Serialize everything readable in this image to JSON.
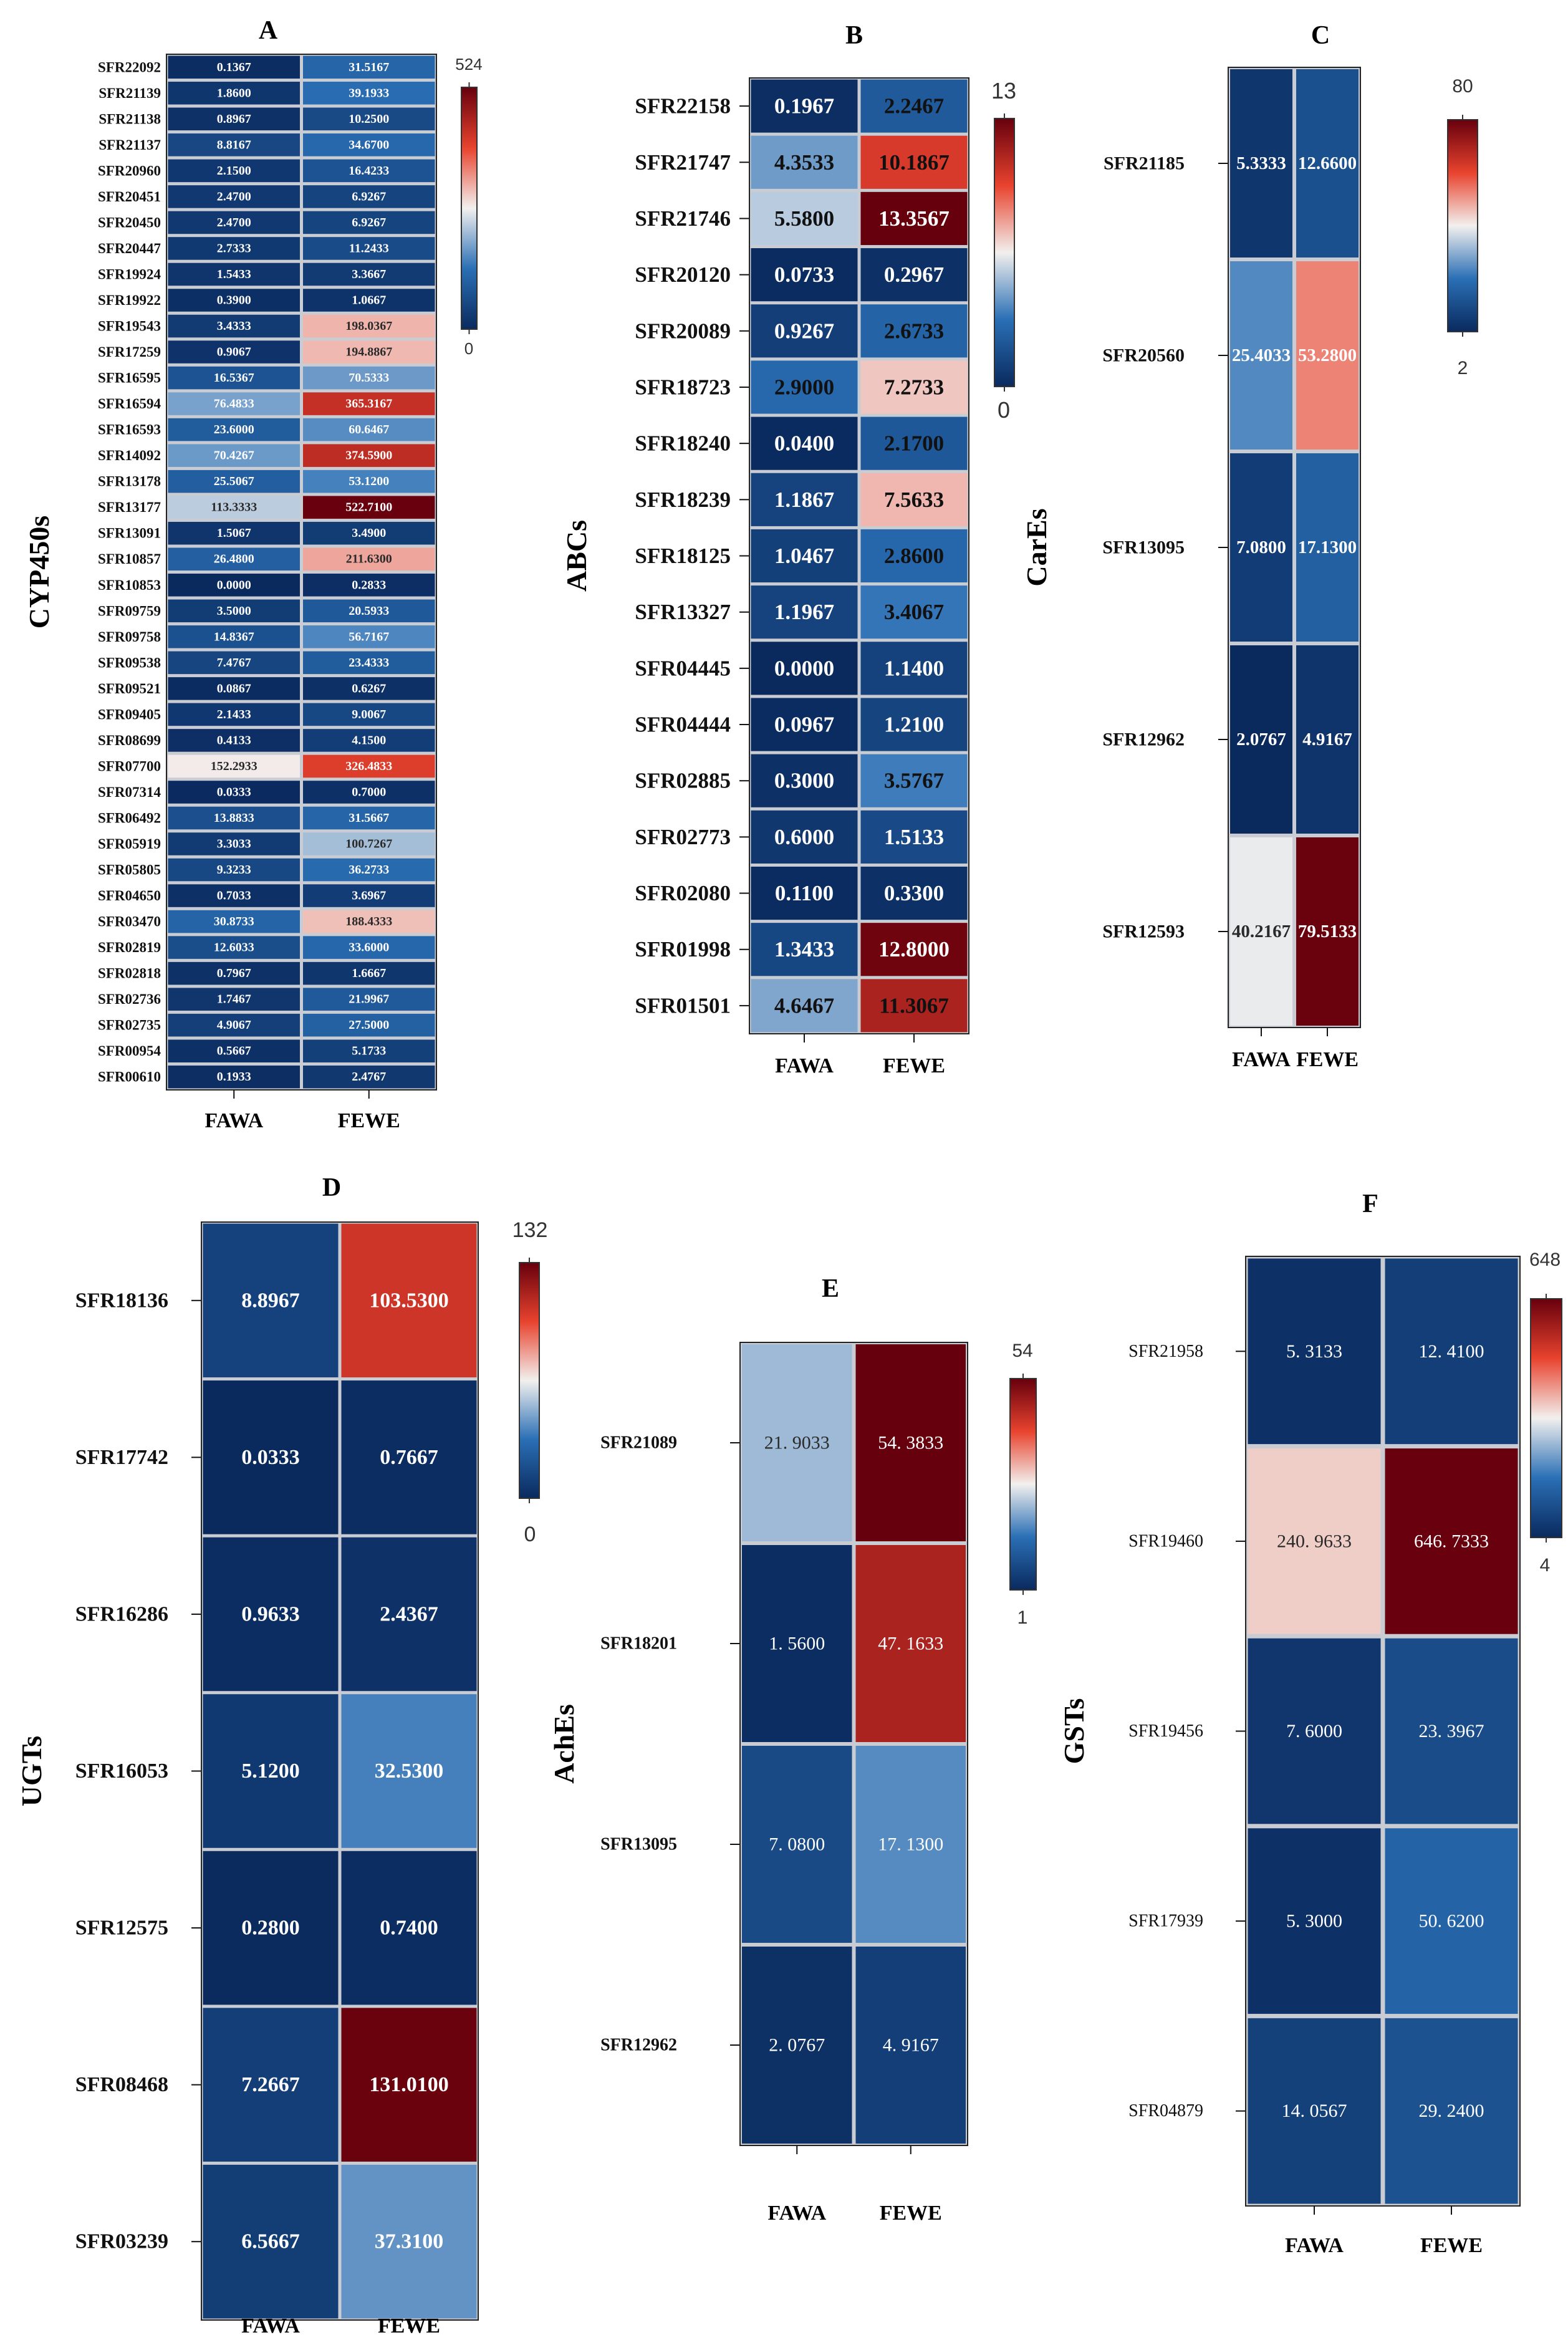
{
  "figure": {
    "chart_data": [
      {
        "type": "heatmap",
        "panel": "A",
        "ylabel": "CYP450s",
        "columns": [
          "FAWA",
          "FEWE"
        ],
        "rows": [
          "SFR22092",
          "SFR21139",
          "SFR21138",
          "SFR21137",
          "SFR20960",
          "SFR20451",
          "SFR20450",
          "SFR20447",
          "SFR19924",
          "SFR19922",
          "SFR19543",
          "SFR17259",
          "SFR16595",
          "SFR16594",
          "SFR16593",
          "SFR14092",
          "SFR13178",
          "SFR13177",
          "SFR13091",
          "SFR10857",
          "SFR10853",
          "SFR09759",
          "SFR09758",
          "SFR09538",
          "SFR09521",
          "SFR09405",
          "SFR08699",
          "SFR07700",
          "SFR07314",
          "SFR06492",
          "SFR05919",
          "SFR05805",
          "SFR04650",
          "SFR03470",
          "SFR02819",
          "SFR02818",
          "SFR02736",
          "SFR02735",
          "SFR00954",
          "SFR00610"
        ],
        "values": [
          [
            "0.1367",
            "31.5167"
          ],
          [
            "1.8600",
            "39.1933"
          ],
          [
            "0.8967",
            "10.2500"
          ],
          [
            "8.8167",
            "34.6700"
          ],
          [
            "2.1500",
            "16.4233"
          ],
          [
            "2.4700",
            "6.9267"
          ],
          [
            "2.4700",
            "6.9267"
          ],
          [
            "2.7333",
            "11.2433"
          ],
          [
            "1.5433",
            "3.3667"
          ],
          [
            "0.3900",
            "1.0667"
          ],
          [
            "3.4333",
            "198.0367"
          ],
          [
            "0.9067",
            "194.8867"
          ],
          [
            "16.5367",
            "70.5333"
          ],
          [
            "76.4833",
            "365.3167"
          ],
          [
            "23.6000",
            "60.6467"
          ],
          [
            "70.4267",
            "374.5900"
          ],
          [
            "25.5067",
            "53.1200"
          ],
          [
            "113.3333",
            "522.7100"
          ],
          [
            "1.5067",
            "3.4900"
          ],
          [
            "26.4800",
            "211.6300"
          ],
          [
            "0.0000",
            "0.2833"
          ],
          [
            "3.5000",
            "20.5933"
          ],
          [
            "14.8367",
            "56.7167"
          ],
          [
            "7.4767",
            "23.4333"
          ],
          [
            "0.0867",
            "0.6267"
          ],
          [
            "2.1433",
            "9.0067"
          ],
          [
            "0.4133",
            "4.1500"
          ],
          [
            "152.2933",
            "326.4833"
          ],
          [
            "0.0333",
            "0.7000"
          ],
          [
            "13.8833",
            "31.5667"
          ],
          [
            "3.3033",
            "100.7267"
          ],
          [
            "9.3233",
            "36.2733"
          ],
          [
            "0.7033",
            "3.6967"
          ],
          [
            "30.8733",
            "188.4333"
          ],
          [
            "12.6033",
            "33.6000"
          ],
          [
            "0.7967",
            "1.6667"
          ],
          [
            "1.7467",
            "21.9967"
          ],
          [
            "4.9067",
            "27.5000"
          ],
          [
            "0.5667",
            "5.1733"
          ],
          [
            "0.1933",
            "2.4767"
          ]
        ],
        "colorbar": {
          "min": 0,
          "max": 524,
          "min_label": "0",
          "max_label": "524"
        }
      },
      {
        "type": "heatmap",
        "panel": "B",
        "ylabel": "ABCs",
        "columns": [
          "FAWA",
          "FEWE"
        ],
        "rows": [
          "SFR22158",
          "SFR21747",
          "SFR21746",
          "SFR20120",
          "SFR20089",
          "SFR18723",
          "SFR18240",
          "SFR18239",
          "SFR18125",
          "SFR13327",
          "SFR04445",
          "SFR04444",
          "SFR02885",
          "SFR02773",
          "SFR02080",
          "SFR01998",
          "SFR01501"
        ],
        "values": [
          [
            "0.1967",
            "2.2467"
          ],
          [
            "4.3533",
            "10.1867"
          ],
          [
            "5.5800",
            "13.3567"
          ],
          [
            "0.0733",
            "0.2967"
          ],
          [
            "0.9267",
            "2.6733"
          ],
          [
            "2.9000",
            "7.2733"
          ],
          [
            "0.0400",
            "2.1700"
          ],
          [
            "1.1867",
            "7.5633"
          ],
          [
            "1.0467",
            "2.8600"
          ],
          [
            "1.1967",
            "3.4067"
          ],
          [
            "0.0000",
            "1.1400"
          ],
          [
            "0.0967",
            "1.2100"
          ],
          [
            "0.3000",
            "3.5767"
          ],
          [
            "0.6000",
            "1.5133"
          ],
          [
            "0.1100",
            "0.3300"
          ],
          [
            "1.3433",
            "12.8000"
          ],
          [
            "4.6467",
            "11.3067"
          ]
        ],
        "colorbar": {
          "min": 0,
          "max": 13,
          "min_label": "0",
          "max_label": "13"
        }
      },
      {
        "type": "heatmap",
        "panel": "C",
        "ylabel": "CarEs",
        "columns": [
          "FAWA",
          "FEWE"
        ],
        "rows": [
          "SFR21185",
          "SFR20560",
          "SFR13095",
          "SFR12962",
          "SFR12593"
        ],
        "values": [
          [
            "5.3333",
            "12.6600"
          ],
          [
            "25.4033",
            "53.2800"
          ],
          [
            "7.0800",
            "17.1300"
          ],
          [
            "2.0767",
            "4.9167"
          ],
          [
            "40.2167",
            "79.5133"
          ]
        ],
        "colorbar": {
          "min": 2,
          "max": 80,
          "min_label": "2",
          "max_label": "80"
        }
      },
      {
        "type": "heatmap",
        "panel": "D",
        "ylabel": "UGTs",
        "columns": [
          "FAWA",
          "FEWE"
        ],
        "rows": [
          "SFR18136",
          "SFR17742",
          "SFR16286",
          "SFR16053",
          "SFR12575",
          "SFR08468",
          "SFR03239"
        ],
        "values": [
          [
            "8.8967",
            "103.5300"
          ],
          [
            "0.0333",
            "0.7667"
          ],
          [
            "0.9633",
            "2.4367"
          ],
          [
            "5.1200",
            "32.5300"
          ],
          [
            "0.2800",
            "0.7400"
          ],
          [
            "7.2667",
            "131.0100"
          ],
          [
            "6.5667",
            "37.3100"
          ]
        ],
        "colorbar": {
          "min": 0,
          "max": 132,
          "min_label": "0",
          "max_label": "132"
        }
      },
      {
        "type": "heatmap",
        "panel": "E",
        "ylabel": "AchEs",
        "columns": [
          "FAWA",
          "FEWE"
        ],
        "rows": [
          "SFR21089",
          "SFR18201",
          "SFR13095",
          "SFR12962"
        ],
        "values": [
          [
            "21. 9033",
            "54. 3833"
          ],
          [
            "1. 5600",
            "47. 1633"
          ],
          [
            "7. 0800",
            "17. 1300"
          ],
          [
            "2. 0767",
            "4. 9167"
          ]
        ],
        "colorbar": {
          "min": 1,
          "max": 54,
          "min_label": "1",
          "max_label": "54"
        }
      },
      {
        "type": "heatmap",
        "panel": "F",
        "ylabel": "GSTs",
        "columns": [
          "FAWA",
          "FEWE"
        ],
        "rows": [
          "SFR21958",
          "SFR19460",
          "SFR19456",
          "SFR17939",
          "SFR04879"
        ],
        "values": [
          [
            "5. 3133",
            "12. 4100"
          ],
          [
            "240. 9633",
            "646. 7333"
          ],
          [
            "7. 6000",
            "23. 3967"
          ],
          [
            "5. 3000",
            "50. 6200"
          ],
          [
            "14. 0567",
            "29. 2400"
          ]
        ],
        "colorbar": {
          "min": 4,
          "max": 648,
          "min_label": "4",
          "max_label": "648"
        }
      }
    ]
  }
}
